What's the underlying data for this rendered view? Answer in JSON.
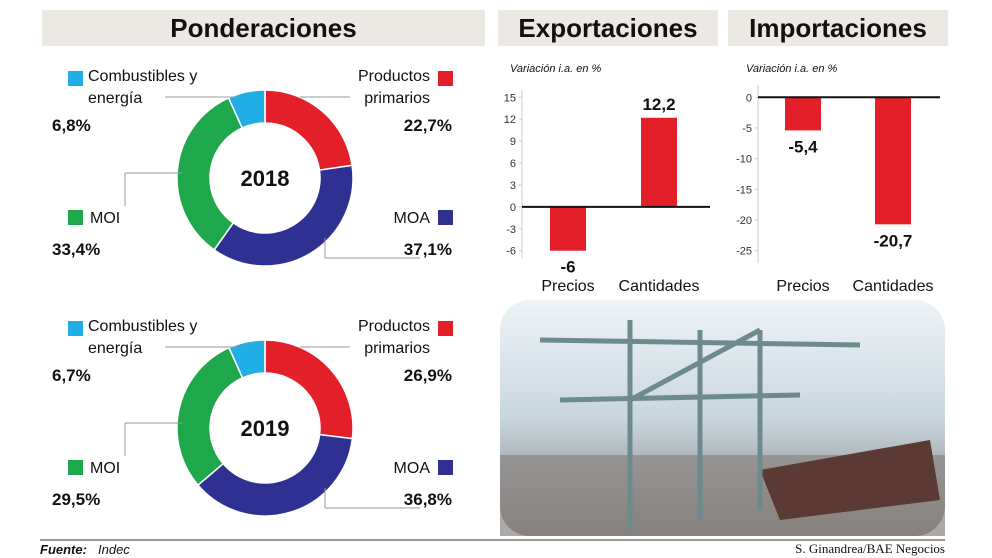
{
  "title": "Ponderaciones",
  "source_label": "Fuente:",
  "source": "Indec",
  "credit": "S. Ginandrea/BAE Negocios",
  "chart_data": [
    {
      "type": "pie",
      "center_label": "2018",
      "categories": [
        "Productos primarios",
        "MOA",
        "MOI",
        "Combustibles y energía"
      ],
      "values": [
        22.7,
        37.1,
        33.4,
        6.8
      ],
      "value_labels": [
        "22,7%",
        "37,1%",
        "33,4%",
        "6,8%"
      ],
      "colors": [
        "#e3202a",
        "#2e3192",
        "#1ea84b",
        "#20aee5"
      ]
    },
    {
      "type": "pie",
      "center_label": "2019",
      "categories": [
        "Productos primarios",
        "MOA",
        "MOI",
        "Combustibles y energía"
      ],
      "values": [
        26.9,
        36.8,
        29.5,
        6.7
      ],
      "value_labels": [
        "26,9%",
        "36,8%",
        "29,5%",
        "6,7%"
      ],
      "colors": [
        "#e3202a",
        "#2e3192",
        "#1ea84b",
        "#20aee5"
      ]
    },
    {
      "type": "bar",
      "title": "Exportaciones",
      "subtitle": "Variación i.a. en %",
      "categories": [
        "Precios",
        "Cantidades"
      ],
      "values": [
        -6,
        12.2
      ],
      "value_labels": [
        "-6",
        "12,2"
      ],
      "color": "#e3202a",
      "ylim": [
        -7,
        16
      ],
      "yticks": [
        15,
        12,
        9,
        6,
        3,
        0,
        -3,
        -6
      ]
    },
    {
      "type": "bar",
      "title": "Importaciones",
      "subtitle": "Variación i.a. en %",
      "categories": [
        "Precios",
        "Cantidades"
      ],
      "values": [
        -5.4,
        -20.7
      ],
      "value_labels": [
        "-5,4",
        "-20,7"
      ],
      "color": "#e3202a",
      "ylim": [
        -27,
        2
      ],
      "yticks": [
        0,
        -5,
        -10,
        -15,
        -20,
        -25
      ]
    }
  ]
}
